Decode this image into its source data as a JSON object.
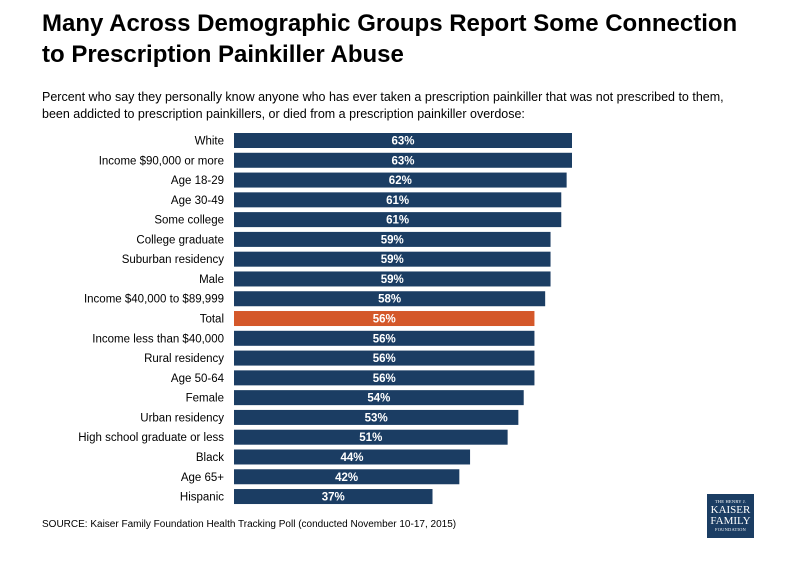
{
  "chart_data": {
    "type": "bar",
    "orientation": "horizontal",
    "title": "Many Across Demographic Groups Report Some Connection to Prescription Painkiller Abuse",
    "subtitle": "Percent who say they personally know anyone who has ever taken a prescription painkiller that was not prescribed to them, been addicted to prescription painkillers, or died from a prescription painkiller overdose:",
    "categories": [
      "White",
      "Income $90,000 or more",
      "Age 18-29",
      "Age 30-49",
      "Some college",
      "College graduate",
      "Suburban residency",
      "Male",
      "Income $40,000 to $89,999",
      "Total",
      "Income less than $40,000",
      "Rural residency",
      "Age 50-64",
      "Female",
      "Urban residency",
      "High school graduate or less",
      "Black",
      "Age 65+",
      "Hispanic"
    ],
    "values": [
      63,
      63,
      62,
      61,
      61,
      59,
      59,
      59,
      58,
      56,
      56,
      56,
      56,
      54,
      53,
      51,
      44,
      42,
      37
    ],
    "value_suffix": "%",
    "highlight_category": "Total",
    "colors": {
      "bar": "#1b3d63",
      "highlight": "#d4582a",
      "label": "#ffffff"
    },
    "xlim": [
      0,
      63
    ],
    "xlabel": "",
    "ylabel": ""
  },
  "source": "SOURCE: Kaiser Family Foundation Health Tracking Poll (conducted November 10-17, 2015)",
  "logo": {
    "line1": "THE HENRY J.",
    "line2": "KAISER",
    "line3": "FAMILY",
    "line4": "FOUNDATION"
  }
}
